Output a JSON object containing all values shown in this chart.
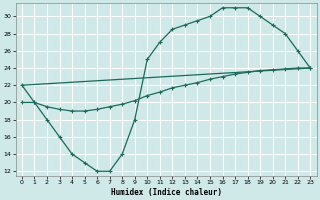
{
  "xlabel": "Humidex (Indice chaleur)",
  "bg_color": "#cfe8e8",
  "line_color": "#1a6b5a",
  "grid_color": "#ffffff",
  "xlim": [
    -0.5,
    23.5
  ],
  "ylim": [
    11.5,
    31.5
  ],
  "xticks": [
    0,
    1,
    2,
    3,
    4,
    5,
    6,
    7,
    8,
    9,
    10,
    11,
    12,
    13,
    14,
    15,
    16,
    17,
    18,
    19,
    20,
    21,
    22,
    23
  ],
  "yticks": [
    12,
    14,
    16,
    18,
    20,
    22,
    24,
    26,
    28,
    30
  ],
  "line1_x": [
    0,
    1,
    2,
    3,
    4,
    5,
    6,
    7,
    8,
    9,
    10,
    11,
    12,
    13,
    14,
    15,
    16,
    17,
    18,
    19,
    20,
    21,
    22,
    23
  ],
  "line1_y": [
    22,
    20,
    18,
    16,
    14,
    13,
    12,
    12,
    14,
    18,
    25,
    27,
    28.5,
    29,
    29.5,
    30,
    31,
    31,
    31,
    30,
    29,
    28,
    26,
    24
  ],
  "line2_x": [
    0,
    23
  ],
  "line2_y": [
    22,
    24
  ],
  "line3_x": [
    0,
    1,
    2,
    3,
    4,
    5,
    6,
    7,
    8,
    9,
    10,
    11,
    12,
    13,
    14,
    15,
    16,
    17,
    18,
    19,
    20,
    21,
    22,
    23
  ],
  "line3_y": [
    20,
    20,
    19.5,
    19.2,
    19.0,
    19.0,
    19.2,
    19.5,
    19.8,
    20.2,
    20.8,
    21.2,
    21.7,
    22.0,
    22.3,
    22.7,
    23.0,
    23.3,
    23.5,
    23.7,
    23.8,
    23.9,
    24.0,
    24.0
  ]
}
